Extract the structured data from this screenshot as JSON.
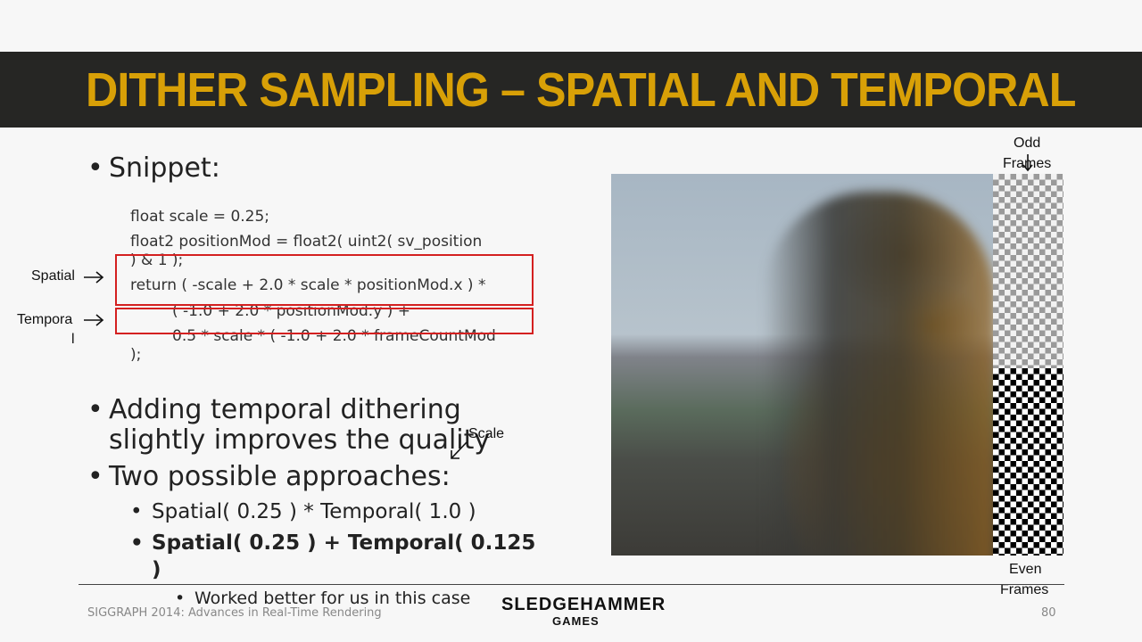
{
  "slide": {
    "title": "DITHER SAMPLING – SPATIAL AND TEMPORAL",
    "accent_color": "#d8a007",
    "title_bar_color": "#262624",
    "bullets": {
      "snippet": "Snippet:",
      "adding": "Adding temporal dithering",
      "adding_line2": "slightly improves the quality",
      "two_approaches": "Two possible approaches:",
      "approach_1": "Spatial( 0.25 ) * Temporal(  1.0 )",
      "approach_2": "Spatial(  0.25 ) + Temporal(  0.125",
      "approach_2_cont": ")",
      "worked_better": "Worked better for us in this case"
    },
    "code": {
      "line1": "float  scale = 0.25;",
      "line2": "float2  positionMod  = float2(  uint2(  sv_position",
      "line3": ") & 1 );",
      "line4": "return  ( -scale  + 2.0 * scale  * positionMod.x   ) *",
      "line5": "( -1.0 + 2.0 * positionMod.y  ) +",
      "line6": "0.5  * scale  * ( -1.0 + 2.0 * frameCountMod",
      "line7": ");"
    },
    "labels": {
      "spatial": "Spatial",
      "temporal_part1": "Tempora",
      "temporal_part2": "l",
      "scale": "Scale",
      "odd_frames_1": "Odd",
      "odd_frames_2": "Frames",
      "even_frames_1": "Even",
      "even_frames_2": "Frames"
    },
    "footer": {
      "conference": "SIGGRAPH 2014: Advances in Real-Time Rendering",
      "logo_main": "SLEDGEHAMMER",
      "logo_sub": "GAMES",
      "page_number": "80"
    }
  }
}
